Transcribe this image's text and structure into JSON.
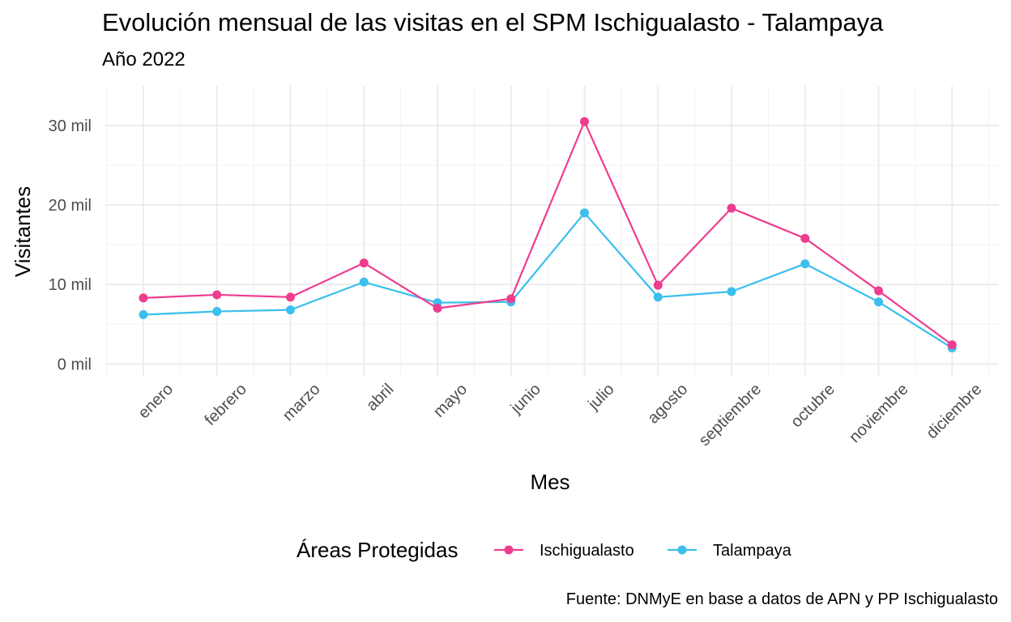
{
  "chart_data": {
    "type": "line",
    "title": "Evolución mensual de las visitas en el SPM Ischigualasto - Talampaya",
    "subtitle": "Año 2022",
    "xlabel": "Mes",
    "ylabel": "Visitantes",
    "caption": "Fuente: DNMyE en base a datos de APN y PP Ischigualasto",
    "categories": [
      "enero",
      "febrero",
      "marzo",
      "abril",
      "mayo",
      "junio",
      "julio",
      "agosto",
      "septiembre",
      "octubre",
      "noviembre",
      "diciembre"
    ],
    "y_ticks": [
      {
        "value": 0,
        "label": "0 mil"
      },
      {
        "value": 10000,
        "label": "10 mil"
      },
      {
        "value": 20000,
        "label": "20 mil"
      },
      {
        "value": 30000,
        "label": "30 mil"
      }
    ],
    "ylim": [
      -1500,
      35000
    ],
    "grid": true,
    "legend": {
      "title": "Áreas Protegidas",
      "position": "bottom"
    },
    "series": [
      {
        "name": "Ischigualasto",
        "color": "#EE3D8F",
        "values": [
          8300,
          8700,
          8400,
          12700,
          7000,
          8200,
          30500,
          9900,
          19600,
          15800,
          9200,
          2400
        ]
      },
      {
        "name": "Talampaya",
        "color": "#3BBFEC",
        "values": [
          6200,
          6600,
          6800,
          10300,
          7700,
          7800,
          19000,
          8400,
          9100,
          12600,
          7800,
          2000
        ]
      }
    ]
  }
}
